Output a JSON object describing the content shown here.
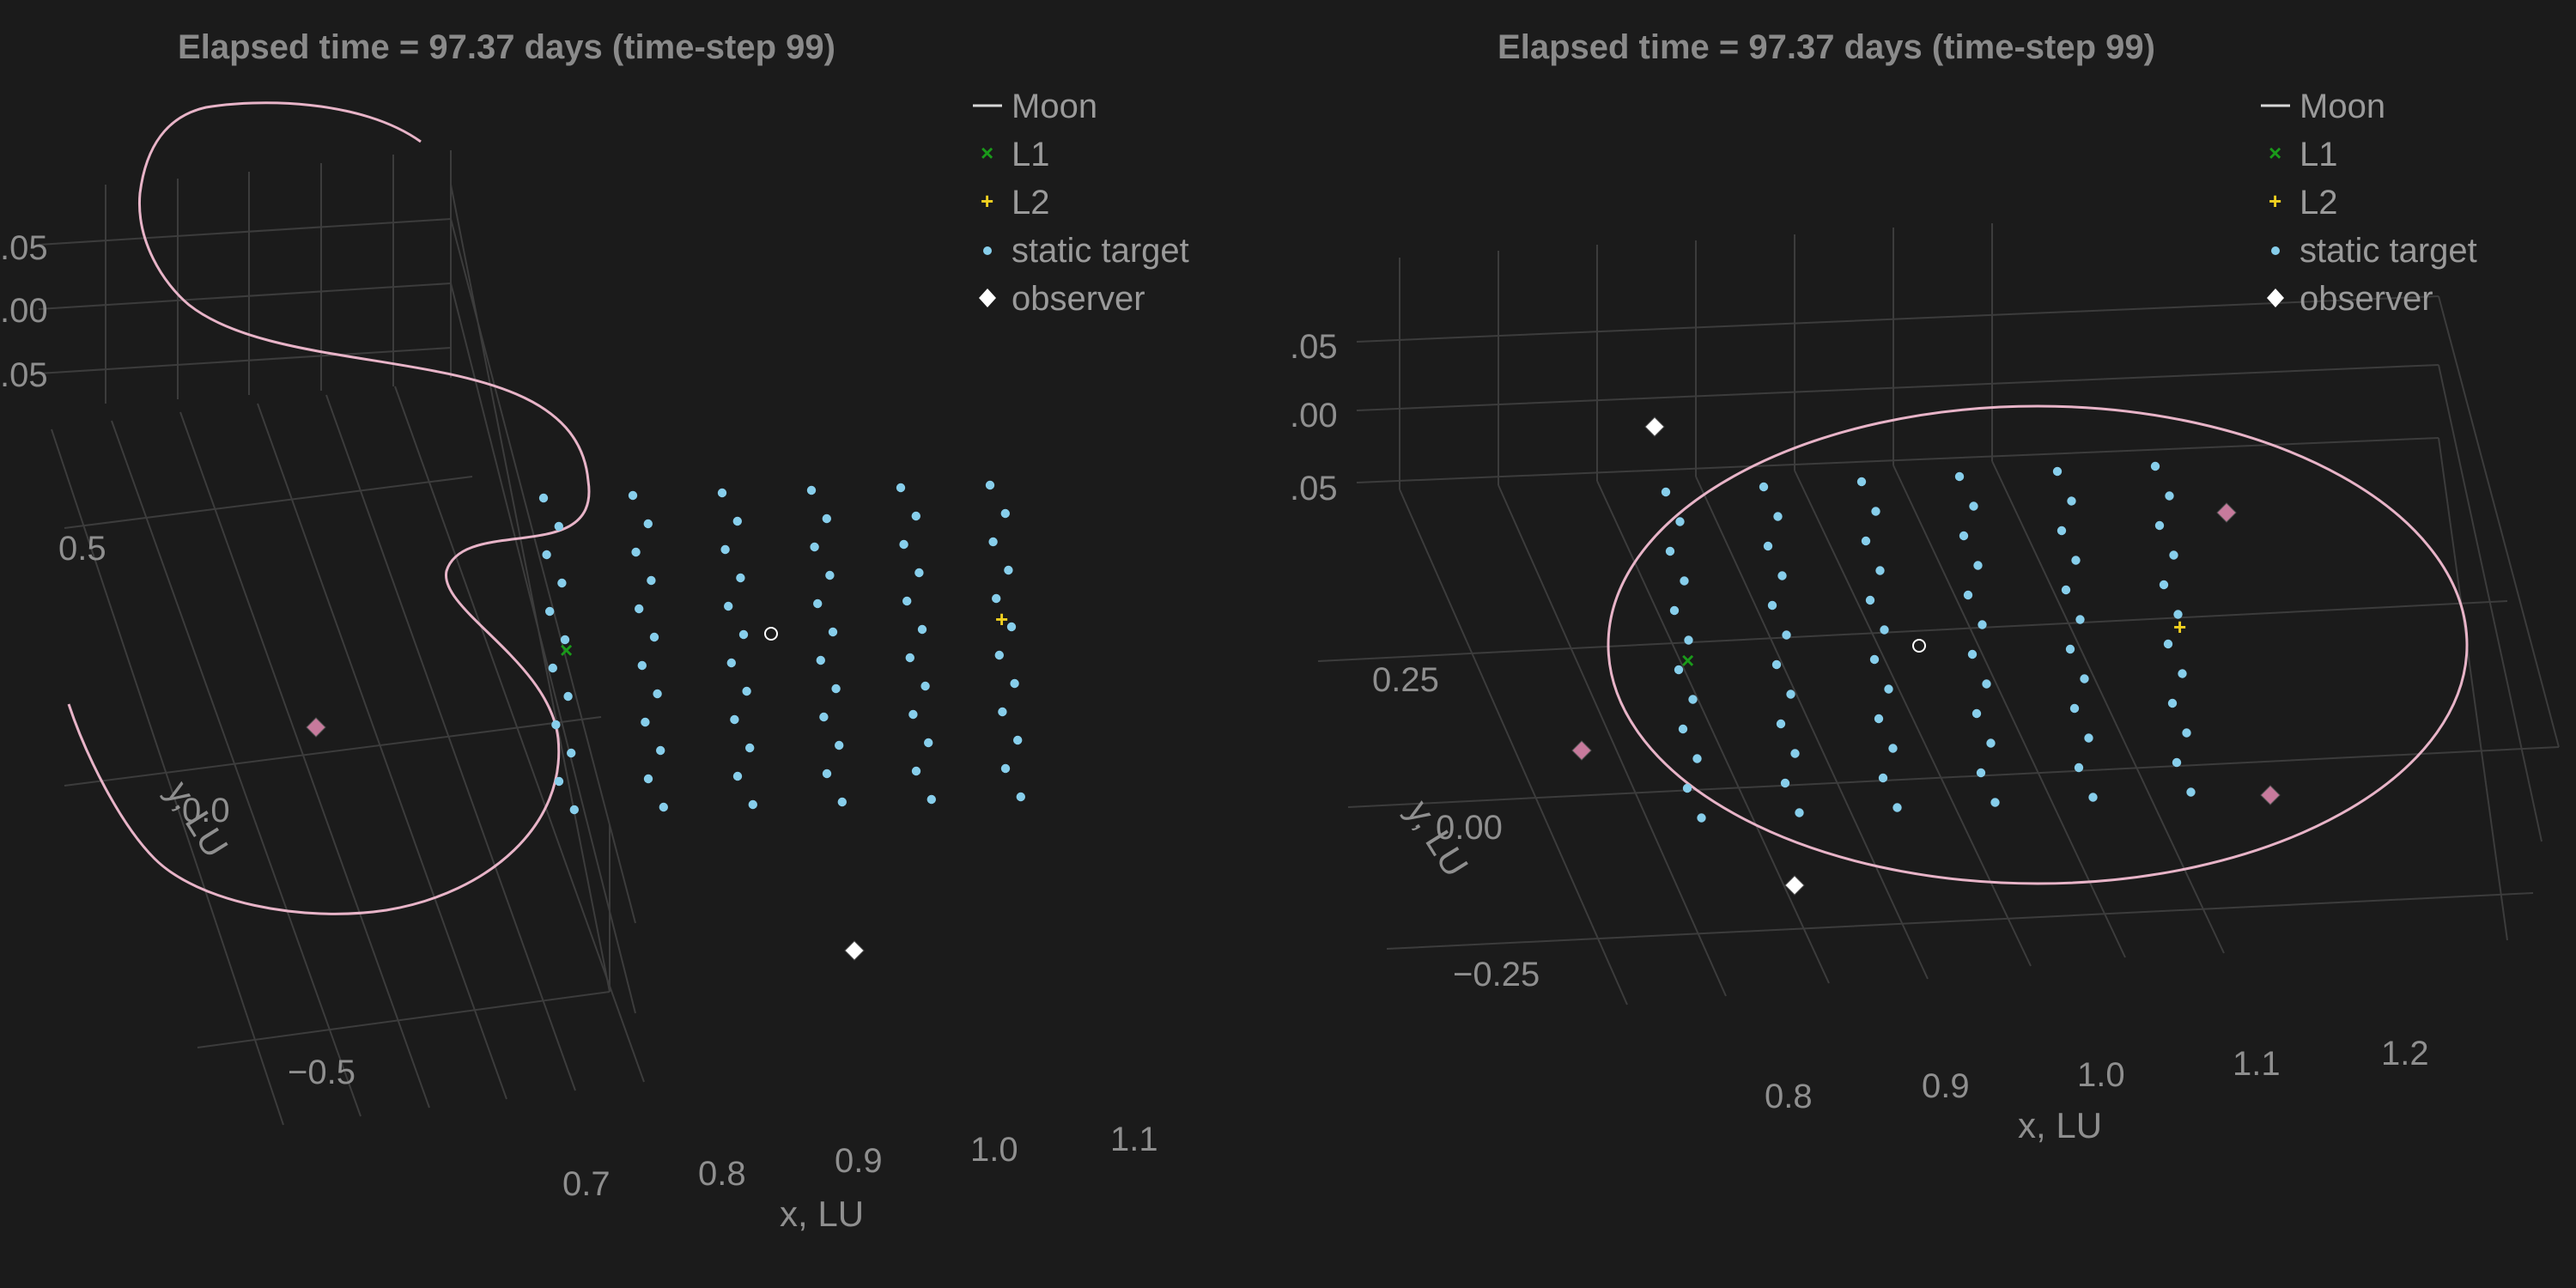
{
  "chart_data": [
    {
      "type": "scatter3d",
      "title": "Elapsed time = 97.37 days (time-step 99)",
      "xlabel": "x, LU",
      "ylabel": "y, LU",
      "x_ticks": [
        "0.7",
        "0.8",
        "0.9",
        "1.0",
        "1.1"
      ],
      "y_ticks": [
        "−0.5",
        "0.0",
        "0.5"
      ],
      "z_ticks": [
        ".05",
        ".00",
        ".05"
      ],
      "xlim": [
        0.65,
        1.15
      ],
      "ylim": [
        -0.6,
        0.6
      ],
      "legend": {
        "position": "top-right",
        "entries": [
          {
            "label": "Moon",
            "marker": "line",
            "color": "#d8d8d8"
          },
          {
            "label": "L1",
            "marker": "x",
            "color": "#1a9a1a"
          },
          {
            "label": "L2",
            "marker": "+",
            "color": "#f0d020"
          },
          {
            "label": "static target",
            "marker": "circle",
            "color": "#87ceeb"
          },
          {
            "label": "observer",
            "marker": "diamond",
            "color": "#ffffff"
          }
        ]
      },
      "series": [
        {
          "name": "observer orbit",
          "type": "line",
          "color": "#e8b4c8"
        },
        {
          "name": "static target grid",
          "columns": [
            0.8,
            0.85,
            0.9,
            0.95,
            1.0,
            1.05
          ],
          "rows": 12,
          "color": "#87ceeb"
        },
        {
          "name": "L1",
          "x": 0.837,
          "y": 0.0,
          "color": "#1a9a1a"
        },
        {
          "name": "L2",
          "x": 1.156,
          "y": 0.0,
          "color": "#f0d020"
        }
      ],
      "observers": [
        {
          "color": "#c77a9c"
        },
        {
          "color": "#ffffff"
        }
      ]
    },
    {
      "type": "scatter3d",
      "title": "Elapsed time = 97.37 days (time-step 99)",
      "xlabel": "x, LU",
      "ylabel": "y, LU",
      "x_ticks": [
        "0.8",
        "0.9",
        "1.0",
        "1.1",
        "1.2"
      ],
      "y_ticks": [
        "−0.25",
        "0.00",
        "0.25"
      ],
      "z_ticks": [
        ".05",
        ".00",
        ".05"
      ],
      "xlim": [
        0.75,
        1.25
      ],
      "ylim": [
        -0.3,
        0.3
      ],
      "legend": {
        "position": "top-right",
        "entries": [
          {
            "label": "Moon",
            "marker": "line",
            "color": "#d8d8d8"
          },
          {
            "label": "L1",
            "marker": "x",
            "color": "#1a9a1a"
          },
          {
            "label": "L2",
            "marker": "+",
            "color": "#f0d020"
          },
          {
            "label": "static target",
            "marker": "circle",
            "color": "#87ceeb"
          },
          {
            "label": "observer",
            "marker": "diamond",
            "color": "#ffffff"
          }
        ]
      },
      "series": [
        {
          "name": "observer orbit",
          "type": "line",
          "color": "#e8b4c8"
        },
        {
          "name": "static target grid",
          "columns": [
            0.85,
            0.9,
            0.95,
            1.0,
            1.05,
            1.1
          ],
          "rows": 12,
          "color": "#87ceeb"
        },
        {
          "name": "L1",
          "x": 0.837,
          "y": 0.0,
          "color": "#1a9a1a"
        },
        {
          "name": "L2",
          "x": 1.156,
          "y": 0.0,
          "color": "#f0d020"
        }
      ],
      "observers": [
        {
          "color": "#ffffff"
        },
        {
          "color": "#c77a9c"
        },
        {
          "color": "#c77a9c"
        },
        {
          "color": "#ffffff"
        },
        {
          "color": "#c77a9c"
        }
      ]
    }
  ]
}
